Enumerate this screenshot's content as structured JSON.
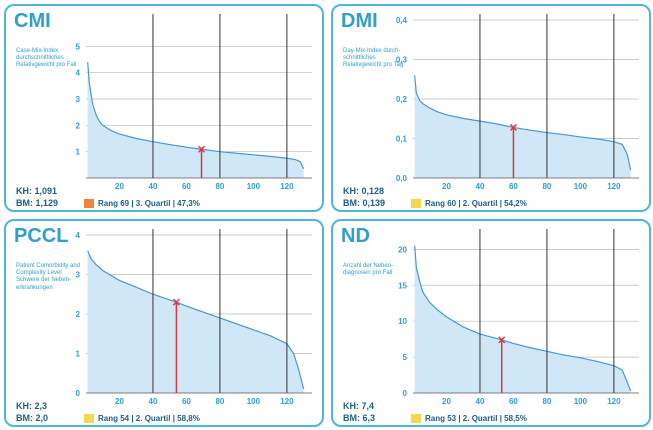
{
  "panels": [
    {
      "title": "CMI",
      "description": "Case-Mix-Index durchschnittliches Relativgewicht pro Fall",
      "kh": "KH: 1,091",
      "bm": "BM: 1,129",
      "rank_text": "Rang 69  |  3. Quartil  |  47,3%",
      "rank_color": "#f0843c"
    },
    {
      "title": "DMI",
      "description": "Day-Mix-Index durch-schnittliches Relativgewicht pro Tag",
      "kh": "KH: 0,128",
      "bm": "BM: 0,139",
      "rank_text": "Rang 60  |  2. Quartil  |  54,2%",
      "rank_color": "#f2d94e"
    },
    {
      "title": "PCCL",
      "description": "Patient Comorbidity and Complexity Level Schwere der Neben-erkrankungen",
      "kh": "KH: 2,3",
      "bm": "BM: 2,0",
      "rank_text": "Rang 54  |  2. Quartil  |  58,8%",
      "rank_color": "#f2d94e"
    },
    {
      "title": "ND",
      "description": "Anzahl der Neben-diagnosen pro Fall",
      "kh": "KH: 7,4",
      "bm": "BM: 6,3",
      "rank_text": "Rang 53  |  2. Quartil  |  58,5%",
      "rank_color": "#f2d94e"
    }
  ],
  "colors": {
    "border": "#4bb7d9",
    "text": "#2e9fd0",
    "dark_text": "#1d5e86",
    "area": "#cfe7f6",
    "line": "#4a98cf",
    "marker": "#e8333b",
    "grid": "#333333"
  },
  "chart_data": [
    {
      "type": "area",
      "title": "CMI",
      "x_ticks": [
        20,
        40,
        60,
        80,
        100,
        120
      ],
      "y_ticks": [
        "1",
        "2",
        "3",
        "4",
        "5"
      ],
      "ylim": [
        0,
        6
      ],
      "xlim": [
        0,
        135
      ],
      "x": [
        1,
        2,
        4,
        6,
        8,
        10,
        15,
        20,
        30,
        40,
        50,
        60,
        69,
        80,
        90,
        100,
        110,
        120,
        125,
        128,
        130
      ],
      "y": [
        4.4,
        3.6,
        2.8,
        2.4,
        2.15,
        2.0,
        1.8,
        1.67,
        1.5,
        1.38,
        1.27,
        1.17,
        1.091,
        1.0,
        0.94,
        0.88,
        0.82,
        0.75,
        0.7,
        0.62,
        0.35
      ],
      "marker": {
        "x": 69,
        "y": 1.091
      }
    },
    {
      "type": "area",
      "title": "DMI",
      "x_ticks": [
        20,
        40,
        60,
        80,
        100,
        120
      ],
      "y_ticks": [
        "0,0",
        "0,1",
        "0,2",
        "0,3",
        "0,4"
      ],
      "ylim": [
        0,
        0.4
      ],
      "xlim": [
        0,
        135
      ],
      "x": [
        1,
        2,
        4,
        6,
        10,
        15,
        20,
        30,
        40,
        50,
        60,
        70,
        80,
        90,
        100,
        110,
        120,
        125,
        128,
        130
      ],
      "y": [
        0.26,
        0.215,
        0.196,
        0.188,
        0.177,
        0.167,
        0.16,
        0.151,
        0.144,
        0.137,
        0.128,
        0.121,
        0.115,
        0.11,
        0.104,
        0.099,
        0.092,
        0.085,
        0.06,
        0.02
      ],
      "marker": {
        "x": 60,
        "y": 0.128
      }
    },
    {
      "type": "area",
      "title": "PCCL",
      "x_ticks": [
        20,
        40,
        60,
        80,
        100,
        120
      ],
      "y_ticks": [
        "0",
        "1",
        "2",
        "3",
        "4"
      ],
      "ylim": [
        0,
        4
      ],
      "xlim": [
        0,
        135
      ],
      "x": [
        1,
        3,
        6,
        10,
        20,
        30,
        40,
        54,
        60,
        70,
        80,
        90,
        100,
        110,
        115,
        120,
        124,
        127,
        130
      ],
      "y": [
        3.6,
        3.4,
        3.25,
        3.1,
        2.85,
        2.68,
        2.5,
        2.3,
        2.2,
        2.05,
        1.9,
        1.75,
        1.6,
        1.45,
        1.35,
        1.25,
        1.0,
        0.6,
        0.1
      ],
      "marker": {
        "x": 54,
        "y": 2.3
      }
    },
    {
      "type": "area",
      "title": "ND",
      "x_ticks": [
        20,
        40,
        60,
        80,
        100,
        120
      ],
      "y_ticks": [
        "0",
        "5",
        "10",
        "15",
        "20"
      ],
      "ylim": [
        0,
        22
      ],
      "xlim": [
        0,
        135
      ],
      "x": [
        1,
        2,
        4,
        6,
        10,
        15,
        20,
        30,
        40,
        53,
        60,
        70,
        80,
        90,
        100,
        110,
        120,
        125,
        128,
        130
      ],
      "y": [
        20.5,
        17.5,
        15.5,
        14,
        12.6,
        11.5,
        10.6,
        9.2,
        8.2,
        7.4,
        6.9,
        6.3,
        5.8,
        5.3,
        4.9,
        4.4,
        3.8,
        3.2,
        1.5,
        0.3
      ],
      "marker": {
        "x": 53,
        "y": 7.4
      }
    }
  ]
}
